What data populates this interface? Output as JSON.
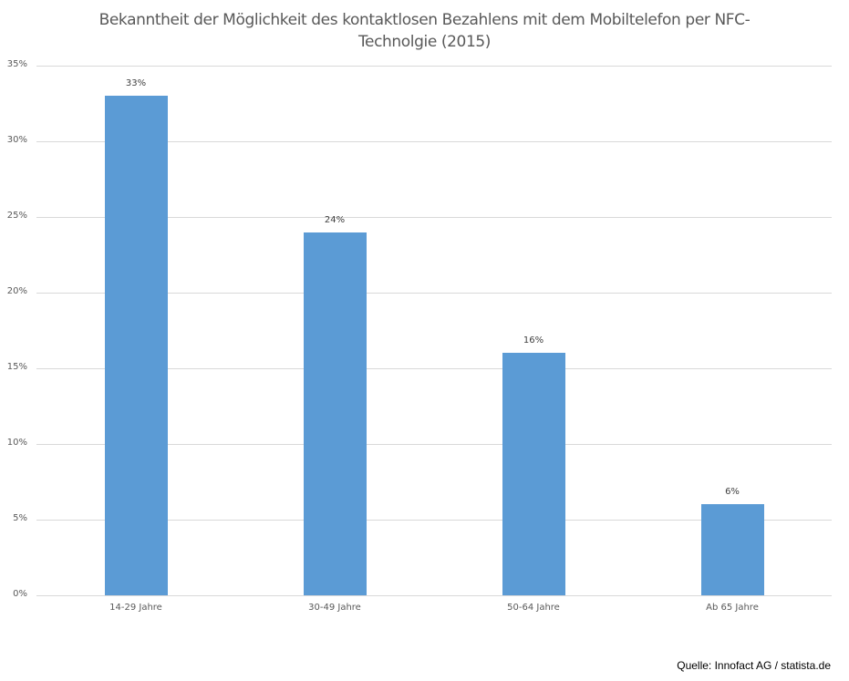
{
  "chart_data": {
    "type": "bar",
    "title": "Bekanntheit der Möglichkeit des kontaktlosen Bezahlens mit dem Mobiltelefon per NFC-Technolgie (2015)",
    "title_lines": [
      "Bekanntheit der Möglichkeit des kontaktlosen Bezahlens mit dem Mobiltelefon per NFC-",
      "Technolgie (2015)"
    ],
    "categories": [
      "14-29 Jahre",
      "30-49 Jahre",
      "50-64 Jahre",
      "Ab 65 Jahre"
    ],
    "values": [
      33,
      24,
      16,
      6
    ],
    "data_labels": [
      "33%",
      "24%",
      "16%",
      "6%"
    ],
    "xlabel": "",
    "ylabel": "",
    "ylim": [
      0,
      35
    ],
    "yticks": [
      "0%",
      "5%",
      "10%",
      "15%",
      "20%",
      "25%",
      "30%",
      "35%"
    ],
    "grid": true,
    "legend": null,
    "bar_color": "#5b9bd5"
  },
  "source": "Quelle: Innofact AG / statista.de"
}
